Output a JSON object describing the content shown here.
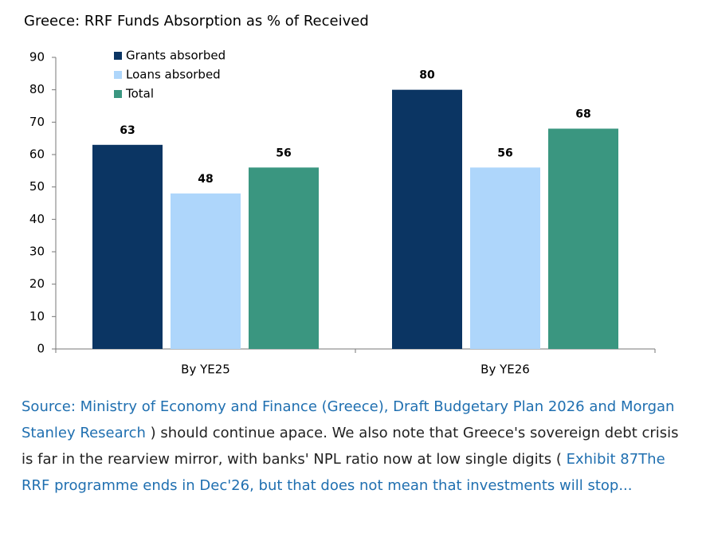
{
  "chart_data": {
    "type": "bar",
    "title": "Greece: RRF Funds Absorption as % of Received",
    "categories": [
      "By YE25",
      "By YE26"
    ],
    "series": [
      {
        "name": "Grants absorbed",
        "color": "#0b3563",
        "values": [
          63,
          80
        ]
      },
      {
        "name": "Loans absorbed",
        "color": "#aed6fb",
        "values": [
          48,
          56
        ]
      },
      {
        "name": "Total",
        "color": "#3a9680",
        "values": [
          56,
          68
        ]
      }
    ],
    "ylim": [
      0,
      90
    ],
    "yticks": [
      0,
      10,
      20,
      30,
      40,
      50,
      60,
      70,
      80,
      90
    ],
    "grid": false,
    "legend": "top-left"
  },
  "note": {
    "source": "Source: Ministry of Economy and Finance (Greece), Draft Budgetary Plan 2026 and Morgan Stanley Research",
    "body": ") should continue apace. We also note that Greece's sovereign debt crisis is far in the rearview mirror, with banks' NPL ratio now at low single digits",
    "open": "(",
    "link": "Exhibit 87The RRF programme ends in Dec'26, but that does not mean that investments will stop..."
  }
}
